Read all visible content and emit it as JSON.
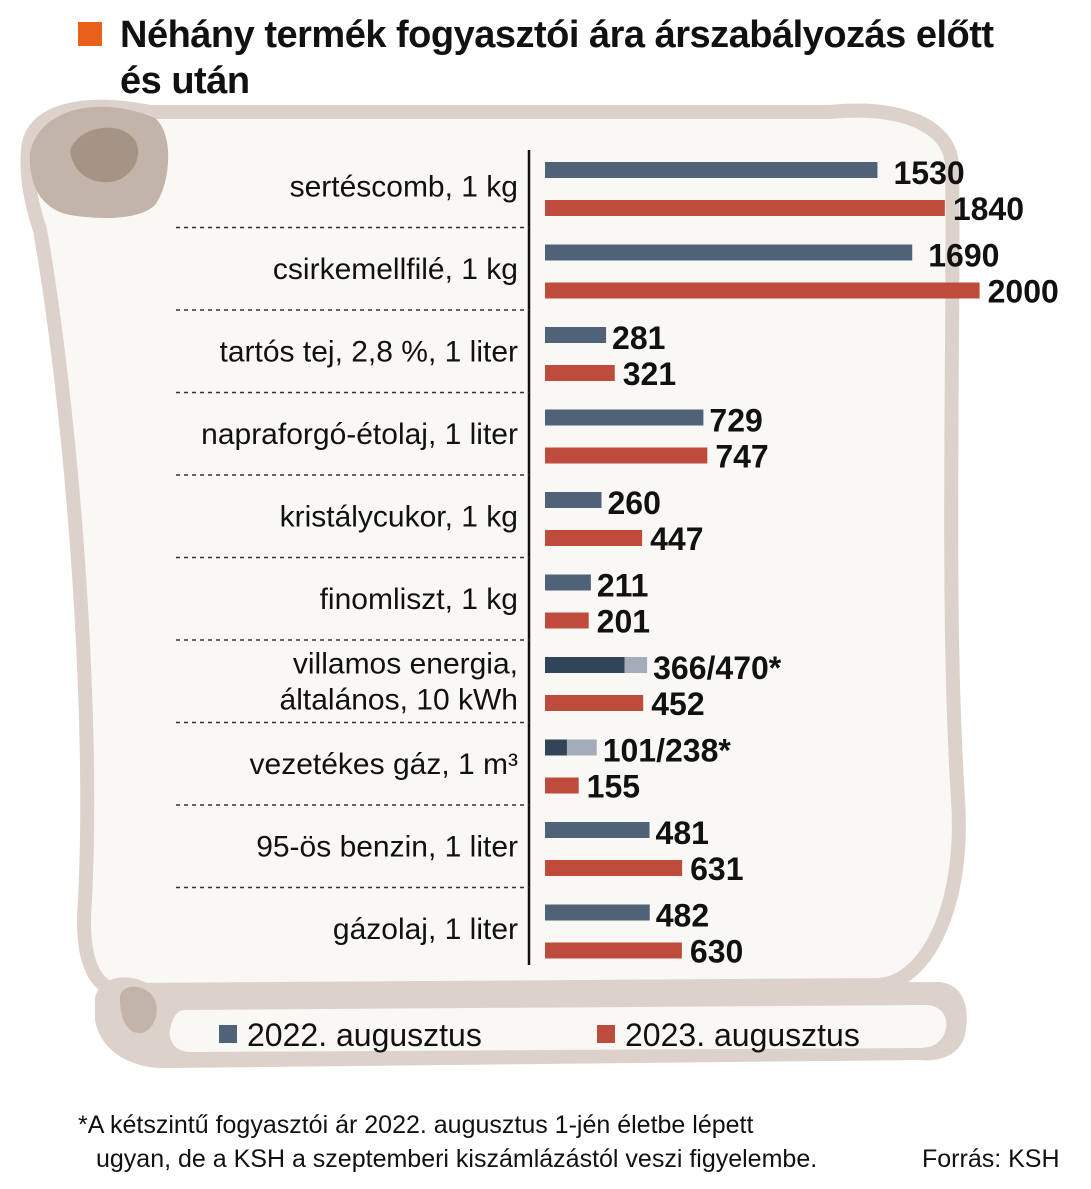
{
  "title": "Néhány termék fogyasztói ára árszabályozás előtt és után",
  "colors": {
    "marker": "#e8601c",
    "series_2022": "#4f6277",
    "series_2022_dark": "#324457",
    "series_2022_light": "#a3acb8",
    "series_2023": "#be4b3c",
    "scroll_fill": "#faf8f5",
    "scroll_edge": "#ddd2cb",
    "scroll_shadow": "#c3b4aa",
    "scroll_dark": "#a59385"
  },
  "chart_data": {
    "type": "bar",
    "orientation": "horizontal",
    "categories": [
      "sertéscomb, 1 kg",
      "csirkemellfilé, 1 kg",
      "tartós tej, 2,8 %, 1  liter",
      "napraforgó-étolaj, 1 liter",
      "kristálycukor, 1 kg",
      "finomliszt, 1 kg",
      "villamos energia,|általános, 10 kWh",
      "vezetékes gáz, 1 m³",
      "95-ös benzin, 1 liter",
      "gázolaj, 1 liter"
    ],
    "series": [
      {
        "name": "2022. augusztus",
        "values": [
          1530,
          1690,
          281,
          729,
          260,
          211,
          366,
          101,
          481,
          482
        ],
        "upper_values": [
          null,
          null,
          null,
          null,
          null,
          null,
          470,
          238,
          null,
          null
        ],
        "labels": [
          "1530",
          "1690",
          "281",
          "729",
          "260",
          "211",
          "366/470*",
          "101/238*",
          "481",
          "482"
        ]
      },
      {
        "name": "2023. augusztus",
        "values": [
          1840,
          2000,
          321,
          747,
          447,
          201,
          452,
          155,
          631,
          630
        ],
        "labels": [
          "1840",
          "2000",
          "321",
          "747",
          "447",
          "201",
          "452",
          "155",
          "631",
          "630"
        ]
      }
    ],
    "legend_position": "bottom"
  },
  "footnote": {
    "line1": "*A kétszintű fogyasztói ár 2022. augusztus 1-jén életbe lépett",
    "line2": "ugyan, de a KSH a szeptemberi kiszámlázástól veszi  figyelembe."
  },
  "source": "Forrás: KSH"
}
